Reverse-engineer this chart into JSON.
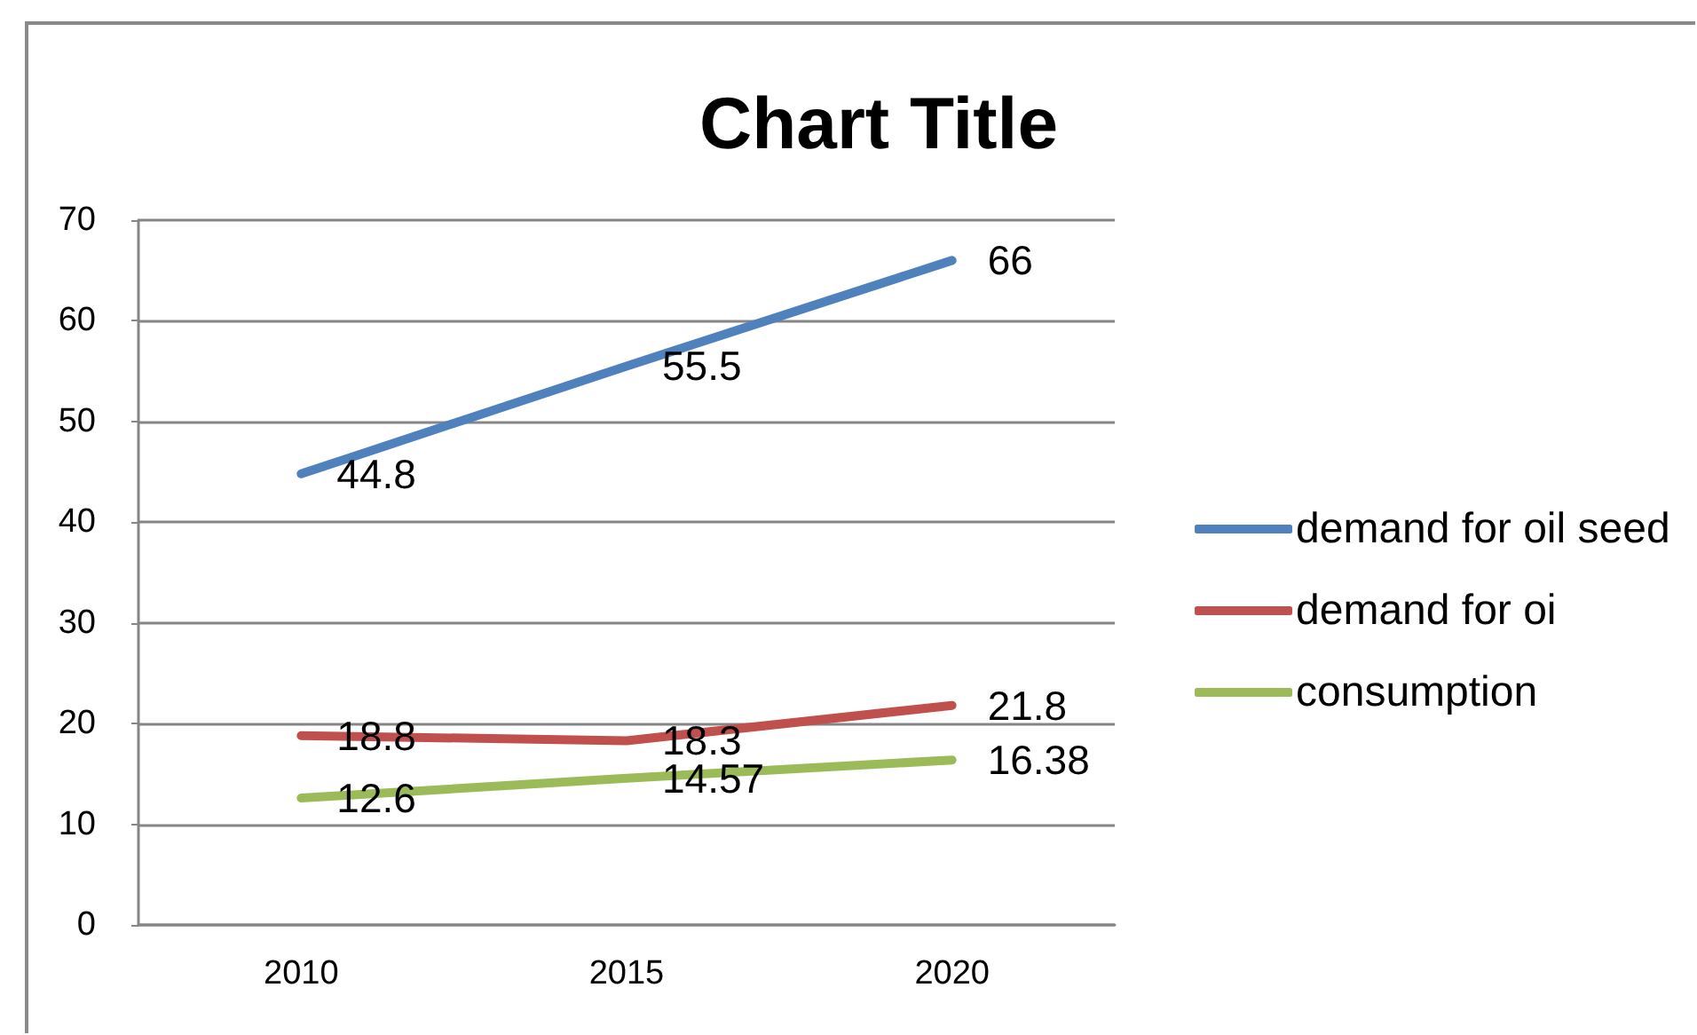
{
  "chart_data": {
    "type": "line",
    "title": "Chart Title",
    "categories": [
      "2010",
      "2015",
      "2020"
    ],
    "series": [
      {
        "name": "demand for oil seed",
        "color": "#4f81bd",
        "values": [
          44.8,
          55.5,
          66
        ]
      },
      {
        "name": "demand for oi",
        "color": "#c0504d",
        "values": [
          18.8,
          18.3,
          21.8
        ]
      },
      {
        "name": "consumption",
        "color": "#9bbb59",
        "values": [
          12.6,
          14.57,
          16.38
        ]
      }
    ],
    "ylim": [
      0,
      70
    ],
    "yticks": [
      0,
      10,
      20,
      30,
      40,
      50,
      60,
      70
    ],
    "grid": "y",
    "legend": "right",
    "marker": "none",
    "line_style": "solid",
    "data_labels": true
  }
}
